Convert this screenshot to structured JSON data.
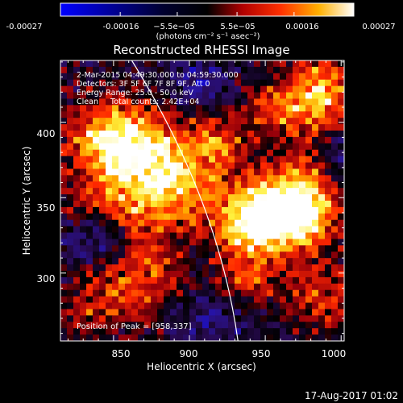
{
  "chart_data": {
    "type": "heatmap",
    "title": "Reconstructed RHESSI Image",
    "xlabel": "Heliocentric X (arcsec)",
    "ylabel": "Heliocentric Y (arcsec)",
    "xlim": [
      815,
      1002
    ],
    "ylim": [
      255,
      441
    ],
    "x_ticks": [
      850,
      900,
      950,
      1000
    ],
    "y_ticks": [
      300,
      350,
      400
    ],
    "colorbar": {
      "ticks": [
        "-0.00027",
        "-0.00016",
        "−5.5e−05",
        "5.5e−05",
        "0.00016",
        "0.00027"
      ],
      "tick_values": [
        -0.00027,
        -0.00016,
        -5.5e-05,
        5.5e-05,
        0.00016,
        0.00027
      ],
      "range": [
        -0.00027,
        0.00027
      ],
      "units": "(photons cm⁻² s⁻¹ asec⁻²)"
    },
    "annotations": [
      "2-Mar-2015 04:49:30.000 to 04:59:30.000",
      "Detectors: 3F 5F 6F 7F 8F 9F, Att 0",
      "Energy Range: 25.0 - 50.0 keV",
      "Clean     Total counts: 2.42E+04"
    ],
    "peak_label": "Position of Peak = [958,337]",
    "peak_position": [
      958,
      337
    ],
    "sources": [
      {
        "x": 958,
        "y": 337,
        "amp": 1.0,
        "sx": 22,
        "sy": 16
      },
      {
        "x": 972,
        "y": 350,
        "amp": 0.85,
        "sx": 18,
        "sy": 20
      },
      {
        "x": 868,
        "y": 372,
        "amp": 0.9,
        "sx": 26,
        "sy": 22
      },
      {
        "x": 850,
        "y": 392,
        "amp": 0.75,
        "sx": 20,
        "sy": 16
      },
      {
        "x": 895,
        "y": 355,
        "amp": 0.55,
        "sx": 22,
        "sy": 18
      },
      {
        "x": 988,
        "y": 418,
        "amp": 0.9,
        "sx": 16,
        "sy": 18
      },
      {
        "x": 958,
        "y": 410,
        "amp": 0.55,
        "sx": 14,
        "sy": 12
      },
      {
        "x": 920,
        "y": 388,
        "amp": 0.5,
        "sx": 14,
        "sy": 12
      },
      {
        "x": 842,
        "y": 338,
        "amp": 0.4,
        "sx": 18,
        "sy": 14
      },
      {
        "x": 870,
        "y": 300,
        "amp": 0.55,
        "sx": 18,
        "sy": 22
      },
      {
        "x": 940,
        "y": 295,
        "amp": 0.45,
        "sx": 16,
        "sy": 14
      },
      {
        "x": 990,
        "y": 285,
        "amp": 0.5,
        "sx": 16,
        "sy": 16
      },
      {
        "x": 838,
        "y": 280,
        "amp": 0.45,
        "sx": 14,
        "sy": 14
      },
      {
        "x": 935,
        "y": 330,
        "amp": 0.5,
        "sx": 14,
        "sy": 18
      }
    ],
    "negative_regions": [
      {
        "x": 840,
        "y": 325,
        "amp": -0.6,
        "sx": 16,
        "sy": 12
      },
      {
        "x": 905,
        "y": 425,
        "amp": -0.45,
        "sx": 14,
        "sy": 10
      },
      {
        "x": 915,
        "y": 270,
        "amp": -0.35,
        "sx": 20,
        "sy": 12
      },
      {
        "x": 1000,
        "y": 380,
        "amp": -0.35,
        "sx": 10,
        "sy": 16
      }
    ],
    "limb": {
      "x_at_top": 862,
      "x_at_bottom": 932,
      "curvature": 0.12
    },
    "grid": false,
    "colormap": "blue-purple-red-yellow-white"
  },
  "timestamp": "17-Aug-2017 01:02"
}
